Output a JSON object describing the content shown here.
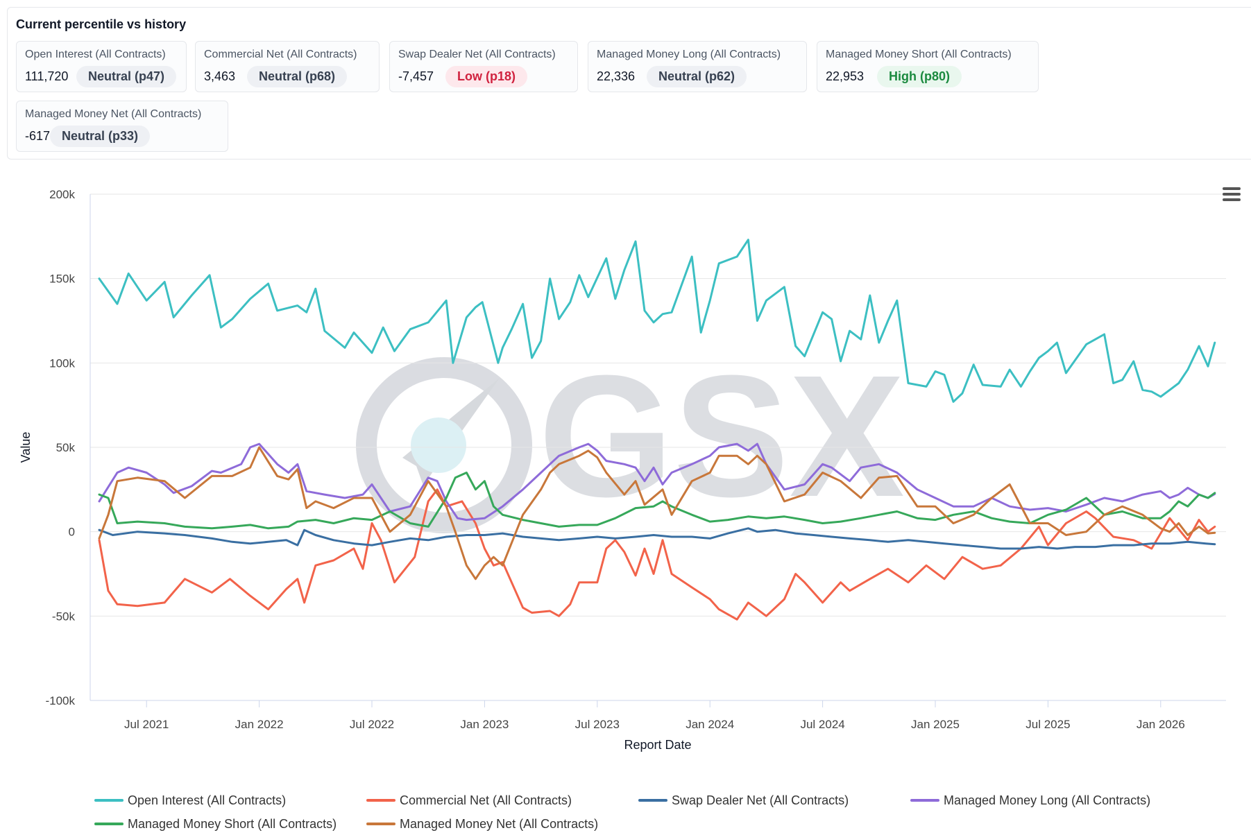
{
  "header": {
    "title": "Current percentile vs history",
    "cards": [
      {
        "label": "Open Interest (All Contracts)",
        "value": "111,720",
        "badge": "Neutral (p47)",
        "status": "neutral"
      },
      {
        "label": "Commercial Net (All Contracts)",
        "value": "3,463",
        "badge": "Neutral (p68)",
        "status": "neutral"
      },
      {
        "label": "Swap Dealer Net (All Contracts)",
        "value": "-7,457",
        "badge": "Low (p18)",
        "status": "low"
      },
      {
        "label": "Managed Money Long (All Contracts)",
        "value": "22,336",
        "badge": "Neutral (p62)",
        "status": "neutral"
      },
      {
        "label": "Managed Money Short (All Contracts)",
        "value": "22,953",
        "badge": "High (p80)",
        "status": "high"
      },
      {
        "label": "Managed Money Net (All Contracts)",
        "value": "-617",
        "badge": "Neutral (p33)",
        "status": "neutral"
      }
    ]
  },
  "chart_menu_icon": "hamburger-menu-icon",
  "watermark_text": "GSX",
  "chart_data": {
    "type": "line",
    "xlabel": "Report Date",
    "ylabel": "Value",
    "ylim": [
      -100000,
      200000
    ],
    "y_ticks": [
      200000,
      150000,
      100000,
      50000,
      0,
      -50000,
      -100000
    ],
    "y_tick_labels": [
      "200k",
      "150k",
      "100k",
      "50k",
      "0",
      "-50k",
      "-100k"
    ],
    "x_range": [
      2021.25,
      2026.29
    ],
    "x_ticks": [
      2021.5,
      2022.0,
      2022.5,
      2023.0,
      2023.5,
      2024.0,
      2024.5,
      2025.0,
      2025.5,
      2026.0
    ],
    "x_tick_labels": [
      "Jul 2021",
      "Jan 2022",
      "Jul 2022",
      "Jan 2023",
      "Jul 2023",
      "Jan 2024",
      "Jul 2024",
      "Jan 2025",
      "Jul 2025",
      "Jan 2026"
    ],
    "legend_position": "bottom",
    "series": [
      {
        "name": "Open Interest (All Contracts)",
        "color": "#3cbfc2",
        "x": [
          2021.29,
          2021.37,
          2021.42,
          2021.5,
          2021.58,
          2021.62,
          2021.7,
          2021.78,
          2021.83,
          2021.88,
          2021.96,
          2022.04,
          2022.08,
          2022.17,
          2022.21,
          2022.25,
          2022.29,
          2022.38,
          2022.42,
          2022.5,
          2022.55,
          2022.6,
          2022.67,
          2022.75,
          2022.83,
          2022.86,
          2022.92,
          2022.96,
          2022.99,
          2023.06,
          2023.08,
          2023.12,
          2023.17,
          2023.21,
          2023.25,
          2023.29,
          2023.33,
          2023.38,
          2023.42,
          2023.46,
          2023.54,
          2023.58,
          2023.62,
          2023.67,
          2023.71,
          2023.75,
          2023.79,
          2023.83,
          2023.92,
          2023.96,
          2024.0,
          2024.04,
          2024.12,
          2024.17,
          2024.21,
          2024.25,
          2024.33,
          2024.38,
          2024.42,
          2024.5,
          2024.54,
          2024.58,
          2024.62,
          2024.67,
          2024.71,
          2024.75,
          2024.79,
          2024.83,
          2024.88,
          2024.96,
          2025.0,
          2025.04,
          2025.08,
          2025.12,
          2025.17,
          2025.21,
          2025.29,
          2025.33,
          2025.38,
          2025.42,
          2025.46,
          2025.5,
          2025.54,
          2025.58,
          2025.67,
          2025.71,
          2025.75,
          2025.79,
          2025.83,
          2025.88,
          2025.92,
          2025.96,
          2026.0,
          2026.04,
          2026.08,
          2026.12,
          2026.17,
          2026.21,
          2026.24
        ],
        "y": [
          150000,
          135000,
          153000,
          137000,
          148000,
          127000,
          140000,
          152000,
          121000,
          126000,
          138000,
          147000,
          131000,
          134000,
          130000,
          144000,
          119000,
          109000,
          118000,
          106000,
          121000,
          107000,
          120000,
          124000,
          137000,
          100000,
          127000,
          133000,
          136000,
          100000,
          109000,
          120000,
          135000,
          103000,
          113000,
          150000,
          126000,
          136000,
          152000,
          139000,
          162000,
          138000,
          155000,
          172000,
          131000,
          124000,
          129000,
          130000,
          163000,
          118000,
          137000,
          159000,
          163000,
          173000,
          125000,
          137000,
          145000,
          110000,
          104000,
          130000,
          126000,
          101000,
          119000,
          114000,
          140000,
          112000,
          125000,
          137000,
          88000,
          86000,
          95000,
          93000,
          77000,
          82000,
          99000,
          87000,
          86000,
          96000,
          86000,
          95000,
          103000,
          107000,
          112000,
          94000,
          111000,
          114000,
          117000,
          88000,
          90000,
          101000,
          84000,
          83000,
          80000,
          84000,
          88000,
          96000,
          110000,
          98000,
          112000
        ]
      },
      {
        "name": "Commercial Net (All Contracts)",
        "color": "#f2634a",
        "x": [
          2021.29,
          2021.33,
          2021.37,
          2021.46,
          2021.58,
          2021.67,
          2021.79,
          2021.87,
          2021.96,
          2022.04,
          2022.12,
          2022.17,
          2022.2,
          2022.25,
          2022.33,
          2022.42,
          2022.46,
          2022.5,
          2022.54,
          2022.6,
          2022.69,
          2022.75,
          2022.79,
          2022.83,
          2022.9,
          2022.96,
          2023.0,
          2023.04,
          2023.08,
          2023.17,
          2023.21,
          2023.29,
          2023.33,
          2023.38,
          2023.42,
          2023.5,
          2023.54,
          2023.58,
          2023.62,
          2023.67,
          2023.71,
          2023.75,
          2023.79,
          2023.83,
          2023.92,
          2024.0,
          2024.04,
          2024.12,
          2024.17,
          2024.21,
          2024.25,
          2024.33,
          2024.38,
          2024.42,
          2024.5,
          2024.58,
          2024.62,
          2024.71,
          2024.79,
          2024.88,
          2024.96,
          2025.04,
          2025.12,
          2025.21,
          2025.29,
          2025.38,
          2025.46,
          2025.5,
          2025.58,
          2025.67,
          2025.71,
          2025.79,
          2025.88,
          2025.96,
          2026.04,
          2026.12,
          2026.17,
          2026.21,
          2026.24
        ],
        "y": [
          -5000,
          -35000,
          -43000,
          -44000,
          -42000,
          -28000,
          -36000,
          -28000,
          -38000,
          -46000,
          -34000,
          -28000,
          -42000,
          -20000,
          -17000,
          -10000,
          -22000,
          5000,
          -5000,
          -30000,
          -15000,
          18000,
          25000,
          15000,
          18000,
          5000,
          -10000,
          -20000,
          -18000,
          -45000,
          -48000,
          -47000,
          -50000,
          -43000,
          -30000,
          -30000,
          -10000,
          -5000,
          -12000,
          -26000,
          -10000,
          -25000,
          -5000,
          -25000,
          -33000,
          -40000,
          -46000,
          -52000,
          -42000,
          -46000,
          -50000,
          -40000,
          -25000,
          -30000,
          -42000,
          -30000,
          -35000,
          -28000,
          -22000,
          -30000,
          -20000,
          -28000,
          -15000,
          -22000,
          -20000,
          -10000,
          3000,
          -8000,
          5000,
          12000,
          8000,
          -3000,
          -5000,
          -10000,
          8000,
          -5000,
          7000,
          0,
          3000
        ]
      },
      {
        "name": "Swap Dealer Net (All Contracts)",
        "color": "#3a6fa2",
        "x": [
          2021.29,
          2021.35,
          2021.46,
          2021.58,
          2021.67,
          2021.79,
          2021.88,
          2021.96,
          2022.04,
          2022.12,
          2022.17,
          2022.2,
          2022.25,
          2022.33,
          2022.42,
          2022.5,
          2022.58,
          2022.67,
          2022.75,
          2022.83,
          2022.92,
          2023.0,
          2023.08,
          2023.17,
          2023.25,
          2023.33,
          2023.42,
          2023.5,
          2023.58,
          2023.67,
          2023.75,
          2023.83,
          2023.92,
          2024.0,
          2024.08,
          2024.17,
          2024.21,
          2024.29,
          2024.38,
          2024.46,
          2024.54,
          2024.62,
          2024.71,
          2024.79,
          2024.88,
          2024.96,
          2025.04,
          2025.12,
          2025.21,
          2025.29,
          2025.38,
          2025.46,
          2025.54,
          2025.62,
          2025.71,
          2025.79,
          2025.88,
          2025.96,
          2026.04,
          2026.12,
          2026.2,
          2026.24
        ],
        "y": [
          1000,
          -2000,
          0,
          -1000,
          -2000,
          -4000,
          -6000,
          -7000,
          -6000,
          -5000,
          -8000,
          1000,
          -2000,
          -5000,
          -7000,
          -8000,
          -6000,
          -4000,
          -5000,
          -3000,
          -2000,
          -2000,
          -1000,
          -3000,
          -4000,
          -5000,
          -4000,
          -3000,
          -4000,
          -3000,
          -2000,
          -3000,
          -3000,
          -4000,
          -1000,
          2000,
          0,
          1000,
          -1000,
          -2000,
          -3000,
          -4000,
          -5000,
          -6000,
          -5000,
          -6000,
          -7000,
          -8000,
          -9000,
          -10000,
          -10000,
          -9000,
          -10000,
          -9000,
          -9000,
          -8000,
          -8000,
          -7000,
          -7000,
          -6000,
          -7000,
          -7457
        ]
      },
      {
        "name": "Managed Money Long (All Contracts)",
        "color": "#8e6bd9",
        "x": [
          2021.29,
          2021.37,
          2021.42,
          2021.5,
          2021.58,
          2021.62,
          2021.7,
          2021.79,
          2021.83,
          2021.92,
          2021.96,
          2022.0,
          2022.08,
          2022.13,
          2022.17,
          2022.21,
          2022.29,
          2022.38,
          2022.46,
          2022.5,
          2022.58,
          2022.67,
          2022.75,
          2022.79,
          2022.83,
          2022.88,
          2022.92,
          2023.0,
          2023.08,
          2023.17,
          2023.25,
          2023.29,
          2023.33,
          2023.42,
          2023.46,
          2023.5,
          2023.54,
          2023.62,
          2023.67,
          2023.71,
          2023.75,
          2023.79,
          2023.83,
          2023.92,
          2024.0,
          2024.04,
          2024.12,
          2024.17,
          2024.21,
          2024.25,
          2024.33,
          2024.42,
          2024.5,
          2024.54,
          2024.62,
          2024.67,
          2024.75,
          2024.83,
          2024.92,
          2025.0,
          2025.08,
          2025.17,
          2025.25,
          2025.33,
          2025.42,
          2025.5,
          2025.58,
          2025.67,
          2025.75,
          2025.83,
          2025.92,
          2026.0,
          2026.04,
          2026.08,
          2026.12,
          2026.17,
          2026.21,
          2026.24
        ],
        "y": [
          18000,
          35000,
          38000,
          35000,
          28000,
          23000,
          27000,
          36000,
          35000,
          40000,
          50000,
          52000,
          40000,
          35000,
          40000,
          24000,
          22000,
          20000,
          22000,
          28000,
          12000,
          15000,
          32000,
          30000,
          18000,
          8000,
          7000,
          8000,
          15000,
          25000,
          35000,
          40000,
          45000,
          50000,
          52000,
          48000,
          42000,
          40000,
          38000,
          30000,
          38000,
          28000,
          35000,
          40000,
          45000,
          50000,
          52000,
          48000,
          52000,
          40000,
          25000,
          28000,
          40000,
          38000,
          30000,
          38000,
          40000,
          35000,
          25000,
          20000,
          15000,
          15000,
          20000,
          15000,
          13000,
          14000,
          12000,
          16000,
          20000,
          18000,
          22000,
          24000,
          20000,
          22000,
          26000,
          22000,
          20000,
          22336
        ]
      },
      {
        "name": "Managed Money Short (All Contracts)",
        "color": "#36a85a",
        "x": [
          2021.29,
          2021.33,
          2021.37,
          2021.46,
          2021.58,
          2021.67,
          2021.79,
          2021.88,
          2021.96,
          2022.04,
          2022.13,
          2022.17,
          2022.25,
          2022.33,
          2022.42,
          2022.5,
          2022.58,
          2022.67,
          2022.75,
          2022.83,
          2022.87,
          2022.92,
          2022.96,
          2023.0,
          2023.04,
          2023.08,
          2023.17,
          2023.25,
          2023.33,
          2023.42,
          2023.5,
          2023.58,
          2023.67,
          2023.75,
          2023.79,
          2023.83,
          2023.92,
          2024.0,
          2024.08,
          2024.17,
          2024.25,
          2024.33,
          2024.42,
          2024.5,
          2024.58,
          2024.67,
          2024.75,
          2024.83,
          2024.92,
          2025.0,
          2025.08,
          2025.17,
          2025.25,
          2025.33,
          2025.42,
          2025.5,
          2025.58,
          2025.67,
          2025.75,
          2025.83,
          2025.92,
          2026.0,
          2026.04,
          2026.08,
          2026.12,
          2026.17,
          2026.21,
          2026.24
        ],
        "y": [
          22000,
          20000,
          5000,
          6000,
          5000,
          3000,
          2000,
          3000,
          4000,
          2000,
          3000,
          6000,
          7000,
          5000,
          8000,
          7000,
          12000,
          5000,
          3000,
          20000,
          32000,
          35000,
          25000,
          30000,
          15000,
          10000,
          7000,
          5000,
          3000,
          4000,
          4000,
          8000,
          14000,
          15000,
          18000,
          15000,
          10000,
          6000,
          7000,
          9000,
          8000,
          9000,
          7000,
          5000,
          6000,
          8000,
          10000,
          12000,
          8000,
          7000,
          10000,
          12000,
          8000,
          6000,
          5000,
          10000,
          13000,
          20000,
          10000,
          12000,
          8000,
          8000,
          12000,
          18000,
          15000,
          22000,
          20000,
          22953
        ]
      },
      {
        "name": "Managed Money Net (All Contracts)",
        "color": "#c8773a",
        "x": [
          2021.29,
          2021.33,
          2021.37,
          2021.46,
          2021.58,
          2021.67,
          2021.79,
          2021.88,
          2021.96,
          2022.0,
          2022.08,
          2022.13,
          2022.17,
          2022.21,
          2022.25,
          2022.33,
          2022.42,
          2022.5,
          2022.58,
          2022.67,
          2022.75,
          2022.83,
          2022.87,
          2022.92,
          2022.96,
          2023.0,
          2023.04,
          2023.08,
          2023.17,
          2023.25,
          2023.29,
          2023.33,
          2023.42,
          2023.46,
          2023.5,
          2023.54,
          2023.62,
          2023.67,
          2023.71,
          2023.79,
          2023.83,
          2023.92,
          2024.0,
          2024.04,
          2024.12,
          2024.17,
          2024.21,
          2024.25,
          2024.33,
          2024.42,
          2024.5,
          2024.58,
          2024.67,
          2024.75,
          2024.83,
          2024.92,
          2025.0,
          2025.08,
          2025.17,
          2025.25,
          2025.33,
          2025.42,
          2025.5,
          2025.58,
          2025.67,
          2025.75,
          2025.83,
          2025.92,
          2026.0,
          2026.04,
          2026.08,
          2026.12,
          2026.17,
          2026.21,
          2026.24
        ],
        "y": [
          -4000,
          10000,
          30000,
          32000,
          30000,
          20000,
          33000,
          33000,
          38000,
          50000,
          33000,
          31000,
          37000,
          14000,
          18000,
          14000,
          20000,
          20000,
          0,
          10000,
          30000,
          15000,
          0,
          -20000,
          -28000,
          -20000,
          -15000,
          -20000,
          10000,
          25000,
          35000,
          40000,
          45000,
          48000,
          44000,
          35000,
          22000,
          30000,
          16000,
          25000,
          10000,
          30000,
          35000,
          45000,
          45000,
          40000,
          45000,
          40000,
          18000,
          22000,
          35000,
          30000,
          20000,
          32000,
          33000,
          15000,
          15000,
          5000,
          10000,
          20000,
          28000,
          5000,
          5000,
          -2000,
          0,
          10000,
          15000,
          10000,
          2000,
          0,
          5000,
          -2000,
          3000,
          -1000,
          -617
        ]
      }
    ]
  }
}
